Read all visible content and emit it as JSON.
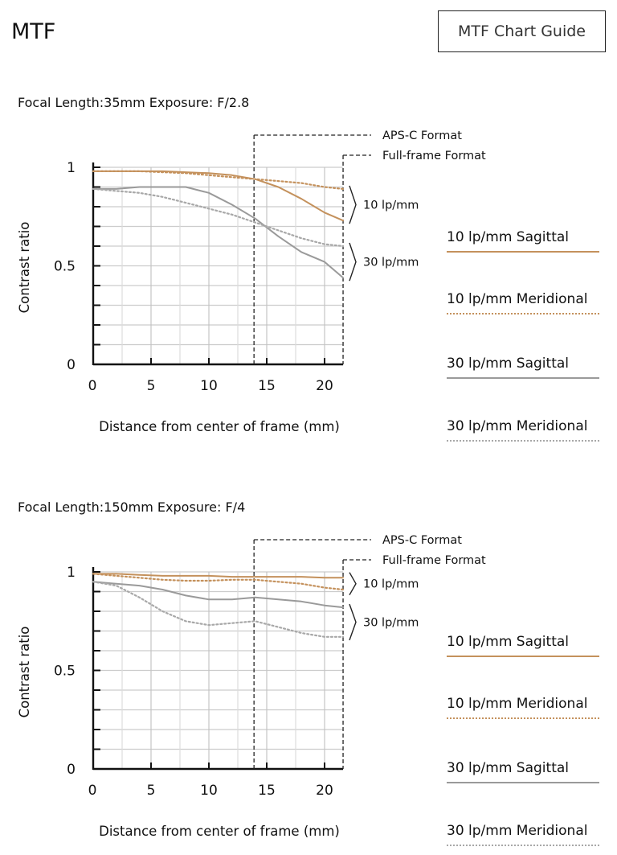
{
  "page": {
    "title": "MTF",
    "guide_button": "MTF Chart Guide"
  },
  "colors": {
    "sagittal10": "#C4915C",
    "meridional10": "#C4915C",
    "sagittal30": "#9A9A9A",
    "meridional30": "#A8A8A8",
    "grid": "#CCCCCC",
    "axis": "#111111"
  },
  "legend": [
    "10 lp/mm Sagittal",
    "10 lp/mm Meridional",
    "30 lp/mm Sagittal",
    "30 lp/mm Meridional"
  ],
  "chart_data": [
    {
      "type": "line",
      "heading": "Focal Length:35mm    Exposure: F/2.8",
      "xlabel": "Distance from center of frame (mm)",
      "ylabel": "Contrast ratio",
      "xlim": [
        0,
        21.6
      ],
      "ylim": [
        0,
        1
      ],
      "x_ticks": [
        "0",
        "5",
        "10",
        "15",
        "20"
      ],
      "y_ticks": [
        "0",
        "0.5",
        "1"
      ],
      "grid": true,
      "markers": [
        {
          "label": "APS-C Format",
          "x": 13.9
        },
        {
          "label": "Full-frame Format",
          "x": 21.6
        }
      ],
      "brackets": [
        "10 lp/mm",
        "30 lp/mm"
      ],
      "series": [
        {
          "name": "10 lp/mm Sagittal",
          "style": "solid",
          "color": "#C4915C",
          "x": [
            0,
            2,
            4,
            6,
            8,
            10,
            12,
            14,
            16,
            18,
            20,
            21.6
          ],
          "y": [
            0.98,
            0.98,
            0.98,
            0.98,
            0.975,
            0.97,
            0.96,
            0.94,
            0.9,
            0.84,
            0.77,
            0.73
          ]
        },
        {
          "name": "10 lp/mm Meridional",
          "style": "dotted",
          "color": "#C4915C",
          "x": [
            0,
            2,
            4,
            6,
            8,
            10,
            12,
            14,
            16,
            18,
            20,
            21.6
          ],
          "y": [
            0.98,
            0.98,
            0.98,
            0.975,
            0.97,
            0.96,
            0.95,
            0.94,
            0.93,
            0.92,
            0.9,
            0.89
          ]
        },
        {
          "name": "30 lp/mm Sagittal",
          "style": "solid",
          "color": "#9A9A9A",
          "x": [
            0,
            2,
            4,
            6,
            8,
            10,
            12,
            14,
            16,
            18,
            20,
            21.6
          ],
          "y": [
            0.89,
            0.89,
            0.9,
            0.9,
            0.9,
            0.87,
            0.81,
            0.74,
            0.65,
            0.57,
            0.52,
            0.44
          ]
        },
        {
          "name": "30 lp/mm Meridional",
          "style": "dotted",
          "color": "#A8A8A8",
          "x": [
            0,
            2,
            4,
            6,
            8,
            10,
            12,
            14,
            16,
            18,
            20,
            21.6
          ],
          "y": [
            0.89,
            0.88,
            0.87,
            0.85,
            0.82,
            0.79,
            0.76,
            0.72,
            0.68,
            0.64,
            0.61,
            0.6
          ]
        }
      ]
    },
    {
      "type": "line",
      "heading": "Focal Length:150mm  Exposure: F/4",
      "xlabel": "Distance from center of frame (mm)",
      "ylabel": "Contrast ratio",
      "xlim": [
        0,
        21.6
      ],
      "ylim": [
        0,
        1
      ],
      "x_ticks": [
        "0",
        "5",
        "10",
        "15",
        "20"
      ],
      "y_ticks": [
        "0",
        "0.5",
        "1"
      ],
      "grid": true,
      "markers": [
        {
          "label": "APS-C Format",
          "x": 13.9
        },
        {
          "label": "Full-frame Format",
          "x": 21.6
        }
      ],
      "brackets": [
        "10 lp/mm",
        "30 lp/mm"
      ],
      "series": [
        {
          "name": "10 lp/mm Sagittal",
          "style": "solid",
          "color": "#C4915C",
          "x": [
            0,
            2,
            4,
            6,
            8,
            10,
            12,
            14,
            16,
            18,
            20,
            21.6
          ],
          "y": [
            0.99,
            0.99,
            0.985,
            0.98,
            0.98,
            0.98,
            0.975,
            0.975,
            0.975,
            0.975,
            0.97,
            0.97
          ]
        },
        {
          "name": "10 lp/mm Meridional",
          "style": "dotted",
          "color": "#C4915C",
          "x": [
            0,
            2,
            4,
            6,
            8,
            10,
            12,
            14,
            16,
            18,
            20,
            21.6
          ],
          "y": [
            0.99,
            0.98,
            0.97,
            0.96,
            0.955,
            0.955,
            0.96,
            0.96,
            0.95,
            0.94,
            0.92,
            0.91
          ]
        },
        {
          "name": "30 lp/mm Sagittal",
          "style": "solid",
          "color": "#9A9A9A",
          "x": [
            0,
            2,
            4,
            6,
            8,
            10,
            12,
            14,
            16,
            18,
            20,
            21.6
          ],
          "y": [
            0.95,
            0.94,
            0.93,
            0.91,
            0.88,
            0.86,
            0.86,
            0.87,
            0.86,
            0.85,
            0.83,
            0.82
          ]
        },
        {
          "name": "30 lp/mm Meridional",
          "style": "dotted",
          "color": "#A8A8A8",
          "x": [
            0,
            2,
            4,
            6,
            8,
            10,
            12,
            14,
            16,
            18,
            20,
            21.6
          ],
          "y": [
            0.95,
            0.93,
            0.87,
            0.8,
            0.75,
            0.73,
            0.74,
            0.75,
            0.72,
            0.69,
            0.67,
            0.67
          ]
        }
      ]
    }
  ]
}
